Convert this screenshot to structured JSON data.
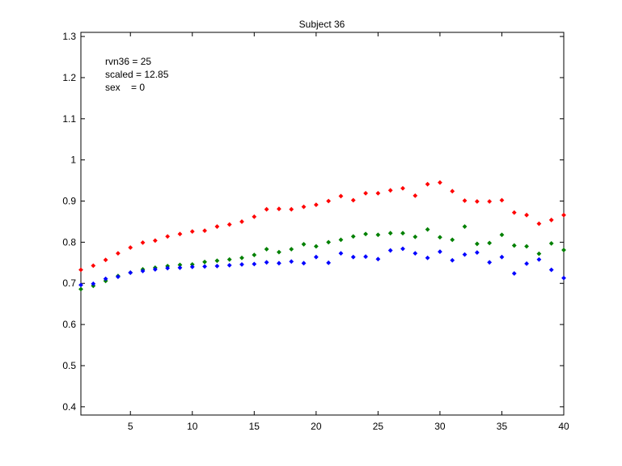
{
  "chart_data": {
    "type": "scatter",
    "title": "Subject 36",
    "xlabel": "",
    "ylabel": "",
    "xlim": [
      1,
      40
    ],
    "ylim": [
      0.38,
      1.31
    ],
    "xticks": [
      5,
      10,
      15,
      20,
      25,
      30,
      35,
      40
    ],
    "yticks": [
      0.4,
      0.5,
      0.6,
      0.7,
      0.8,
      0.9,
      1,
      1.1,
      1.2,
      1.3
    ],
    "xtick_labels": [
      "5",
      "10",
      "15",
      "20",
      "25",
      "30",
      "35",
      "40"
    ],
    "ytick_labels": [
      "0.4",
      "0.5",
      "0.6",
      "0.7",
      "0.8",
      "0.9",
      "1",
      "1.1",
      "1.2",
      "1.3"
    ],
    "grid": false,
    "annotations": [
      "rvn36 = 25",
      "scaled = 12.85",
      "sex    = 0"
    ],
    "x": [
      1,
      2,
      3,
      4,
      5,
      6,
      7,
      8,
      9,
      10,
      11,
      12,
      13,
      14,
      15,
      16,
      17,
      18,
      19,
      20,
      21,
      22,
      23,
      24,
      25,
      26,
      27,
      28,
      29,
      30,
      31,
      32,
      33,
      34,
      35,
      36,
      37,
      38,
      39,
      40
    ],
    "series": [
      {
        "color": "#ff0000",
        "values": [
          0.733,
          0.743,
          0.757,
          0.773,
          0.787,
          0.799,
          0.804,
          0.814,
          0.82,
          0.826,
          0.828,
          0.838,
          0.843,
          0.85,
          0.862,
          0.88,
          0.881,
          0.88,
          0.886,
          0.891,
          0.9,
          0.912,
          0.902,
          0.919,
          0.919,
          0.926,
          0.931,
          0.913,
          0.941,
          0.945,
          0.924,
          0.901,
          0.899,
          0.899,
          0.902,
          0.872,
          0.866,
          0.845,
          0.854,
          0.866
        ]
      },
      {
        "color": "#008000",
        "values": [
          0.686,
          0.694,
          0.706,
          0.718,
          0.726,
          0.734,
          0.738,
          0.742,
          0.745,
          0.746,
          0.752,
          0.755,
          0.758,
          0.762,
          0.769,
          0.783,
          0.776,
          0.783,
          0.795,
          0.79,
          0.8,
          0.806,
          0.814,
          0.82,
          0.818,
          0.822,
          0.822,
          0.813,
          0.831,
          0.812,
          0.806,
          0.838,
          0.796,
          0.798,
          0.818,
          0.792,
          0.79,
          0.772,
          0.797,
          0.781
        ]
      },
      {
        "color": "#0000ff",
        "values": [
          0.696,
          0.699,
          0.711,
          0.716,
          0.726,
          0.73,
          0.734,
          0.737,
          0.738,
          0.74,
          0.741,
          0.742,
          0.744,
          0.746,
          0.747,
          0.751,
          0.749,
          0.753,
          0.749,
          0.764,
          0.75,
          0.773,
          0.764,
          0.765,
          0.759,
          0.78,
          0.784,
          0.773,
          0.762,
          0.777,
          0.756,
          0.77,
          0.775,
          0.751,
          0.764,
          0.724,
          0.748,
          0.758,
          0.733,
          0.713
        ]
      }
    ]
  }
}
